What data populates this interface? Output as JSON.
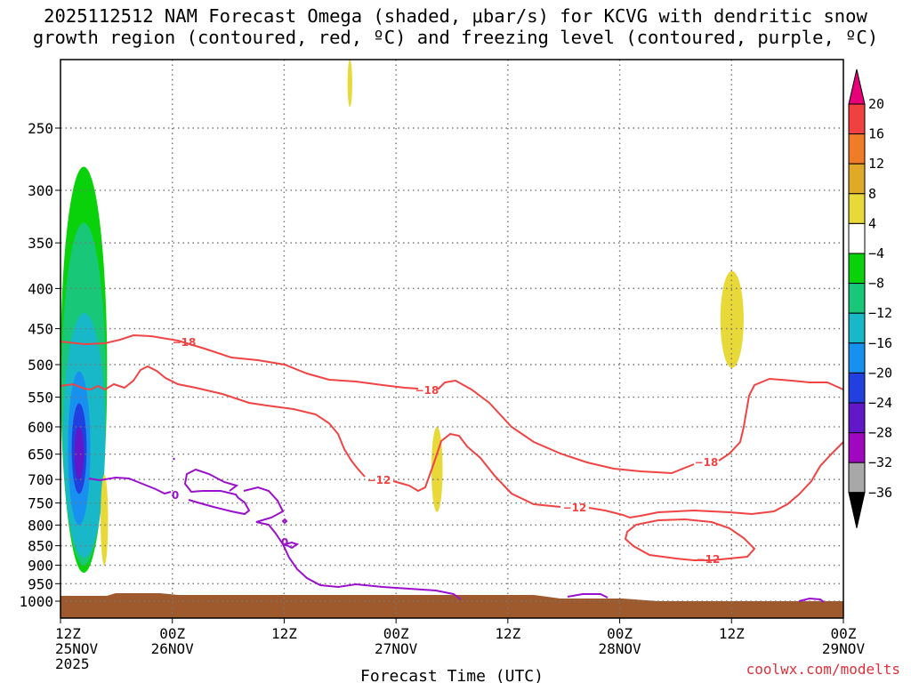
{
  "title_line1": "2025112512 NAM Forecast Omega (shaded, μbar/s) for KCVG with dendritic snow",
  "title_line2": "growth region (contoured, red, ºC) and freezing level (contoured, purple, ºC)",
  "credit": "coolwx.com/modelts",
  "chart_data": {
    "type": "time-height contour",
    "xlabel": "Forecast Time (UTC)",
    "x_ticks": [
      {
        "hour": 0,
        "line1": "12Z",
        "line2": "25NOV",
        "line3": "2025"
      },
      {
        "hour": 12,
        "line1": "00Z",
        "line2": "26NOV"
      },
      {
        "hour": 24,
        "line1": "12Z"
      },
      {
        "hour": 36,
        "line1": "00Z",
        "line2": "27NOV"
      },
      {
        "hour": 48,
        "line1": "12Z"
      },
      {
        "hour": 60,
        "line1": "00Z",
        "line2": "28NOV"
      },
      {
        "hour": 72,
        "line1": "12Z"
      },
      {
        "hour": 84,
        "line1": "00Z",
        "line2": "29NOV"
      }
    ],
    "y_scale": "pressure (log)",
    "y_ticks": [
      250,
      300,
      350,
      400,
      450,
      500,
      550,
      600,
      650,
      700,
      750,
      800,
      850,
      900,
      950,
      1000
    ],
    "colorbar": {
      "unit": "μbar/s",
      "labels": [
        "20",
        "16",
        "12",
        "8",
        "4",
        "−4",
        "−8",
        "−12",
        "−16",
        "−20",
        "−24",
        "−28",
        "−32",
        "−36"
      ],
      "colors": [
        "#e8007a",
        "#f04040",
        "#f07c28",
        "#e0aa28",
        "#e8d838",
        "#ffffff",
        "#0ad20a",
        "#18c878",
        "#18b8c8",
        "#1890f0",
        "#2040e0",
        "#6018c8",
        "#a008c0",
        "#a8a8a8",
        "#000000"
      ]
    },
    "contour_labels": {
      "red_upper": "−18",
      "red_lower": "−12",
      "purple": "0"
    },
    "omega_blobs": [
      {
        "category": "−8",
        "color": "#0ad20a",
        "t_hour_range": [
          0.0,
          5.0
        ],
        "p_range_hpa": [
          280,
          920
        ]
      },
      {
        "category": "−12",
        "color": "#18c878",
        "t_hour_range": [
          0.1,
          4.9
        ],
        "p_range_hpa": [
          330,
          900
        ]
      },
      {
        "category": "−16",
        "color": "#18b8c8",
        "t_hour_range": [
          0.3,
          4.8
        ],
        "p_range_hpa": [
          430,
          880
        ]
      },
      {
        "category": "−20",
        "color": "#1890f0",
        "t_hour_range": [
          0.8,
          3.2
        ],
        "p_range_hpa": [
          510,
          800
        ]
      },
      {
        "category": "−24",
        "color": "#2040e0",
        "t_hour_range": [
          1.2,
          2.8
        ],
        "p_range_hpa": [
          560,
          730
        ]
      },
      {
        "category": "−28",
        "color": "#6018c8",
        "t_hour_range": [
          1.5,
          2.5
        ],
        "p_range_hpa": [
          600,
          700
        ]
      },
      {
        "category": "+4",
        "color": "#e8d838",
        "t_hour_range": [
          30.8,
          31.3
        ],
        "p_range_hpa": [
          150,
          235
        ]
      },
      {
        "category": "+4",
        "color": "#e8d838",
        "t_hour_range": [
          39.8,
          41.0
        ],
        "p_range_hpa": [
          600,
          770
        ]
      },
      {
        "category": "+4",
        "color": "#e8d838",
        "t_hour_range": [
          70.8,
          73.3
        ],
        "p_range_hpa": [
          380,
          505
        ]
      },
      {
        "category": "+4",
        "color": "#e8d838",
        "t_hour_range": [
          4.3,
          5.1
        ],
        "p_range_hpa": [
          690,
          900
        ]
      }
    ]
  }
}
